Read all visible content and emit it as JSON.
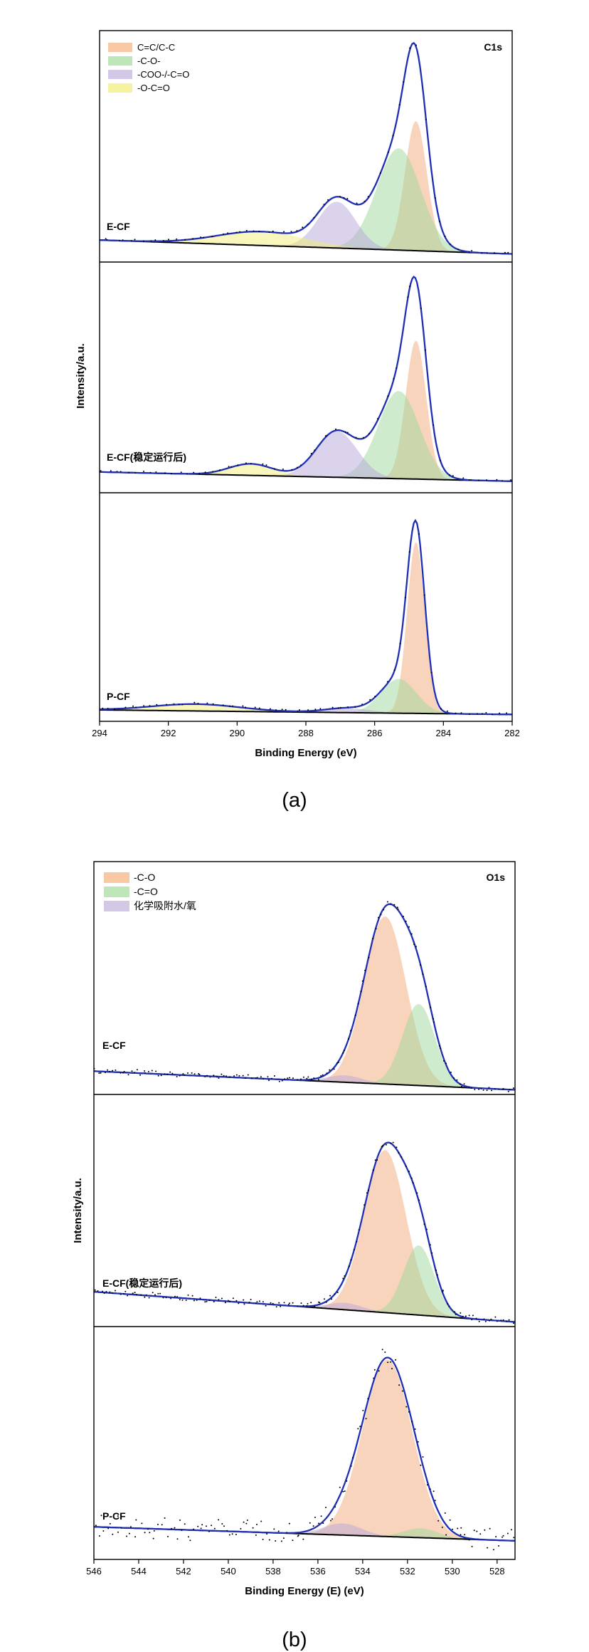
{
  "chart_data": [
    {
      "type": "line",
      "caption": "(a)",
      "corner_label": "C1s",
      "xlabel": "Binding Energy (eV)",
      "ylabel": "Intensity/a.u.",
      "xlim": [
        294,
        282
      ],
      "x_reversed": true,
      "x_ticks": [
        294,
        292,
        290,
        288,
        286,
        284,
        282
      ],
      "grid": false,
      "legend_position": "top-left",
      "legend": [
        {
          "label": "C=C/C-C",
          "color": "#f8c7a4"
        },
        {
          "label": "-C-O-",
          "color": "#bfe6b8"
        },
        {
          "label": "-COO-/-C=O",
          "color": "#d3c8e6"
        },
        {
          "label": "-O-C=O",
          "color": "#f6f3a0"
        }
      ],
      "panels": [
        {
          "label": "E-CF",
          "envelope_max": 0.9,
          "background": {
            "hi": 0.095,
            "lo": 0.035
          },
          "components": [
            {
              "name": "C=C/C-C",
              "center": 284.8,
              "fwhm": 0.75,
              "height": 0.56,
              "color": "#f4a97b"
            },
            {
              "name": "-C-O-",
              "center": 285.3,
              "fwhm": 1.5,
              "height": 0.44,
              "color": "#9dd89b"
            },
            {
              "name": "-COO-/-C=O",
              "center": 287.1,
              "fwhm": 1.3,
              "height": 0.2,
              "color": "#b8a8d8"
            },
            {
              "name": "-O-C=O",
              "center": 289.3,
              "fwhm": 3.0,
              "height": 0.06,
              "color": "#f2ee78"
            }
          ]
        },
        {
          "label": "E-CF(稳定运行后)",
          "envelope_max": 0.92,
          "background": {
            "hi": 0.09,
            "lo": 0.05
          },
          "components": [
            {
              "name": "C=C/C-C",
              "center": 284.8,
              "fwhm": 0.7,
              "height": 0.6,
              "color": "#f4a97b"
            },
            {
              "name": "-C-O-",
              "center": 285.3,
              "fwhm": 1.4,
              "height": 0.38,
              "color": "#9dd89b"
            },
            {
              "name": "-COO-/-C=O",
              "center": 287.1,
              "fwhm": 1.4,
              "height": 0.2,
              "color": "#b8a8d8"
            },
            {
              "name": "-O-C=O",
              "center": 289.6,
              "fwhm": 1.5,
              "height": 0.05,
              "color": "#f2ee78"
            }
          ]
        },
        {
          "label": "P-CF",
          "envelope_max": 0.92,
          "background": {
            "hi": 0.05,
            "lo": 0.03
          },
          "components": [
            {
              "name": "C=C/C-C",
              "center": 284.8,
              "fwhm": 0.6,
              "height": 0.75,
              "color": "#f4a97b"
            },
            {
              "name": "-C-O-",
              "center": 285.3,
              "fwhm": 1.2,
              "height": 0.15,
              "color": "#9dd89b"
            },
            {
              "name": "-COO-/-C=O",
              "center": 286.8,
              "fwhm": 1.5,
              "height": 0.02,
              "color": "#b8a8d8"
            },
            {
              "name": "-O-C=O",
              "center": 291.2,
              "fwhm": 3.0,
              "height": 0.03,
              "color": "#f2ee78"
            }
          ]
        }
      ]
    },
    {
      "type": "line",
      "caption": "(b)",
      "corner_label": "O1s",
      "xlabel": "Binding Energy (E) (eV)",
      "ylabel": "Intensity/a.u.",
      "xlim": [
        546,
        527.2
      ],
      "x_reversed": true,
      "x_ticks": [
        546,
        544,
        542,
        540,
        538,
        536,
        534,
        532,
        530,
        528
      ],
      "grid": false,
      "legend_position": "top-left",
      "legend": [
        {
          "label": "-C-O",
          "color": "#f8c7a4"
        },
        {
          "label": "-C=O",
          "color": "#bfe6b8"
        },
        {
          "label": "化学吸附水/氧",
          "color": "#d3c8e6"
        }
      ],
      "panels": [
        {
          "label": "E-CF",
          "envelope_max": 0.85,
          "background": {
            "hi": 0.1,
            "lo": 0.02
          },
          "components": [
            {
              "name": "-C-O",
              "center": 533.0,
              "fwhm": 2.2,
              "height": 0.72,
              "color": "#f4a97b"
            },
            {
              "name": "-C=O",
              "center": 531.5,
              "fwhm": 1.7,
              "height": 0.35,
              "color": "#9dd89b"
            },
            {
              "name": "化学吸附水/氧",
              "center": 534.8,
              "fwhm": 1.8,
              "height": 0.03,
              "color": "#b8a8d8"
            }
          ]
        },
        {
          "label": "E-CF(稳定运行后)",
          "envelope_max": 0.83,
          "background": {
            "hi": 0.15,
            "lo": 0.02
          },
          "components": [
            {
              "name": "-C-O",
              "center": 533.0,
              "fwhm": 2.2,
              "height": 0.7,
              "color": "#f4a97b"
            },
            {
              "name": "-C=O",
              "center": 531.5,
              "fwhm": 1.6,
              "height": 0.3,
              "color": "#9dd89b"
            },
            {
              "name": "化学吸附水/氧",
              "center": 534.8,
              "fwhm": 1.8,
              "height": 0.03,
              "color": "#b8a8d8"
            }
          ]
        },
        {
          "label": "P-CF",
          "envelope_max": 0.88,
          "background": {
            "hi": 0.14,
            "lo": 0.08
          },
          "components": [
            {
              "name": "-C-O",
              "center": 532.9,
              "fwhm": 2.6,
              "height": 0.76,
              "color": "#f4a97b"
            },
            {
              "name": "-C=O",
              "center": 531.4,
              "fwhm": 1.8,
              "height": 0.04,
              "color": "#9dd89b"
            },
            {
              "name": "化学吸附水/氧",
              "center": 534.9,
              "fwhm": 2.0,
              "height": 0.05,
              "color": "#b8a8d8"
            }
          ]
        }
      ]
    }
  ]
}
